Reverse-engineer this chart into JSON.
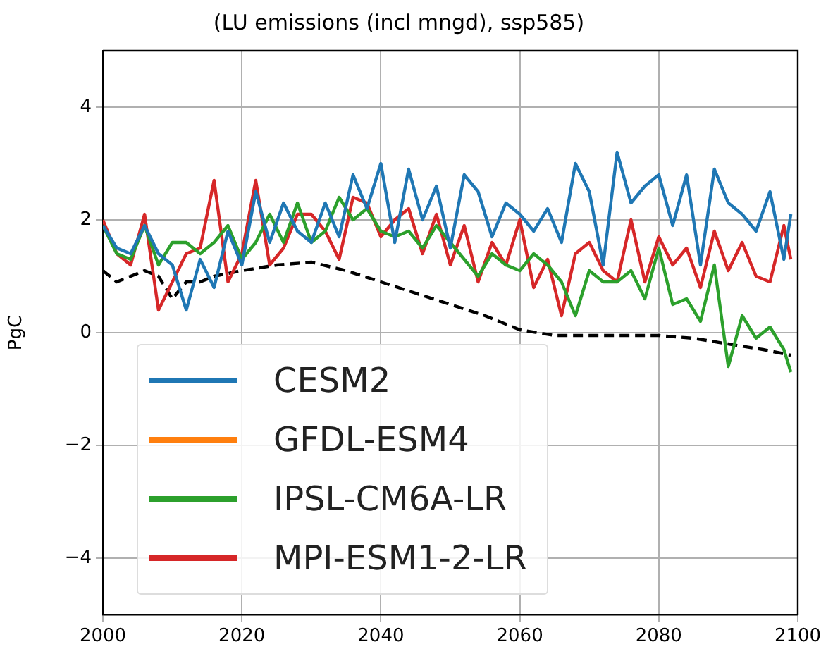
{
  "chart_data": {
    "type": "line",
    "title": "(LU emissions (incl mngd), ssp585)",
    "ylabel": "PgC",
    "xlim": [
      2000,
      2100
    ],
    "xticks": [
      2000,
      2020,
      2040,
      2060,
      2080,
      2100
    ],
    "ylim": [
      -5,
      5
    ],
    "yticks": [
      -4,
      -2,
      0,
      2,
      4
    ],
    "grid": true,
    "legend": "bottom left",
    "line_style": "solid",
    "marker": "none",
    "series": [
      {
        "name": "CESM2",
        "color": "#1f77b4",
        "x": [
          2000,
          2002,
          2004,
          2006,
          2008,
          2010,
          2012,
          2014,
          2016,
          2018,
          2020,
          2022,
          2024,
          2026,
          2028,
          2030,
          2032,
          2034,
          2036,
          2038,
          2040,
          2042,
          2044,
          2046,
          2048,
          2050,
          2052,
          2054,
          2056,
          2058,
          2060,
          2062,
          2064,
          2066,
          2068,
          2070,
          2072,
          2074,
          2076,
          2078,
          2080,
          2082,
          2084,
          2086,
          2088,
          2090,
          2092,
          2094,
          2096,
          2098,
          2099
        ],
        "values": [
          1.9,
          1.5,
          1.4,
          1.9,
          1.4,
          1.2,
          0.4,
          1.3,
          0.8,
          1.8,
          1.2,
          2.5,
          1.6,
          2.3,
          1.8,
          1.6,
          2.3,
          1.7,
          2.8,
          2.2,
          3.0,
          1.6,
          2.9,
          2.0,
          2.6,
          1.5,
          2.8,
          2.5,
          1.7,
          2.3,
          2.1,
          1.8,
          2.2,
          1.6,
          3.0,
          2.5,
          1.2,
          3.2,
          2.3,
          2.6,
          2.8,
          1.9,
          2.8,
          1.2,
          2.9,
          2.3,
          2.1,
          1.8,
          2.5,
          1.3,
          2.1
        ]
      },
      {
        "name": "GFDL-ESM4",
        "color": "#ff7f0e"
      },
      {
        "name": "IPSL-CM6A-LR",
        "color": "#2ca02c",
        "x": [
          2000,
          2002,
          2004,
          2006,
          2008,
          2010,
          2012,
          2014,
          2016,
          2018,
          2020,
          2022,
          2024,
          2026,
          2028,
          2030,
          2032,
          2034,
          2036,
          2038,
          2040,
          2042,
          2044,
          2046,
          2048,
          2050,
          2052,
          2054,
          2056,
          2058,
          2060,
          2062,
          2064,
          2066,
          2068,
          2070,
          2072,
          2074,
          2076,
          2078,
          2080,
          2082,
          2084,
          2086,
          2088,
          2090,
          2092,
          2094,
          2096,
          2098,
          2099
        ],
        "values": [
          1.9,
          1.4,
          1.3,
          1.9,
          1.2,
          1.6,
          1.6,
          1.4,
          1.6,
          1.9,
          1.3,
          1.6,
          2.1,
          1.6,
          2.3,
          1.6,
          1.8,
          2.4,
          2.0,
          2.2,
          1.8,
          1.7,
          1.8,
          1.5,
          1.9,
          1.6,
          1.3,
          1.0,
          1.4,
          1.2,
          1.1,
          1.4,
          1.2,
          0.9,
          0.3,
          1.1,
          0.9,
          0.9,
          1.1,
          0.6,
          1.5,
          0.5,
          0.6,
          0.2,
          1.2,
          -0.6,
          0.3,
          -0.1,
          0.1,
          -0.3,
          -0.7
        ]
      },
      {
        "name": "MPI-ESM1-2-LR",
        "color": "#d62728",
        "x": [
          2000,
          2002,
          2004,
          2006,
          2008,
          2010,
          2012,
          2014,
          2016,
          2018,
          2020,
          2022,
          2024,
          2026,
          2028,
          2030,
          2032,
          2034,
          2036,
          2038,
          2040,
          2042,
          2044,
          2046,
          2048,
          2050,
          2052,
          2054,
          2056,
          2058,
          2060,
          2062,
          2064,
          2066,
          2068,
          2070,
          2072,
          2074,
          2076,
          2078,
          2080,
          2082,
          2084,
          2086,
          2088,
          2090,
          2092,
          2094,
          2096,
          2098,
          2099
        ],
        "values": [
          2.0,
          1.4,
          1.2,
          2.1,
          0.4,
          0.9,
          1.4,
          1.5,
          2.7,
          0.9,
          1.4,
          2.7,
          1.2,
          1.5,
          2.1,
          2.1,
          1.8,
          1.3,
          2.4,
          2.3,
          1.7,
          2.0,
          2.2,
          1.4,
          2.1,
          1.2,
          1.9,
          0.9,
          1.6,
          1.2,
          2.0,
          0.8,
          1.3,
          0.3,
          1.4,
          1.6,
          1.1,
          0.9,
          2.0,
          0.9,
          1.7,
          1.2,
          1.5,
          0.8,
          1.8,
          1.1,
          1.6,
          1.0,
          0.9,
          1.9,
          1.3
        ]
      },
      {
        "color": "#000000",
        "line_style": "dashed",
        "x": [
          2000,
          2002,
          2004,
          2006,
          2008,
          2010,
          2012,
          2014,
          2016,
          2020,
          2025,
          2030,
          2035,
          2040,
          2045,
          2050,
          2055,
          2060,
          2065,
          2070,
          2080,
          2085,
          2090,
          2095,
          2099
        ],
        "values": [
          1.1,
          0.9,
          1.0,
          1.1,
          1.0,
          0.6,
          0.9,
          0.9,
          1.0,
          1.1,
          1.2,
          1.25,
          1.1,
          0.9,
          0.7,
          0.5,
          0.3,
          0.05,
          -0.05,
          -0.05,
          -0.05,
          -0.1,
          -0.2,
          -0.3,
          -0.4
        ]
      }
    ]
  }
}
